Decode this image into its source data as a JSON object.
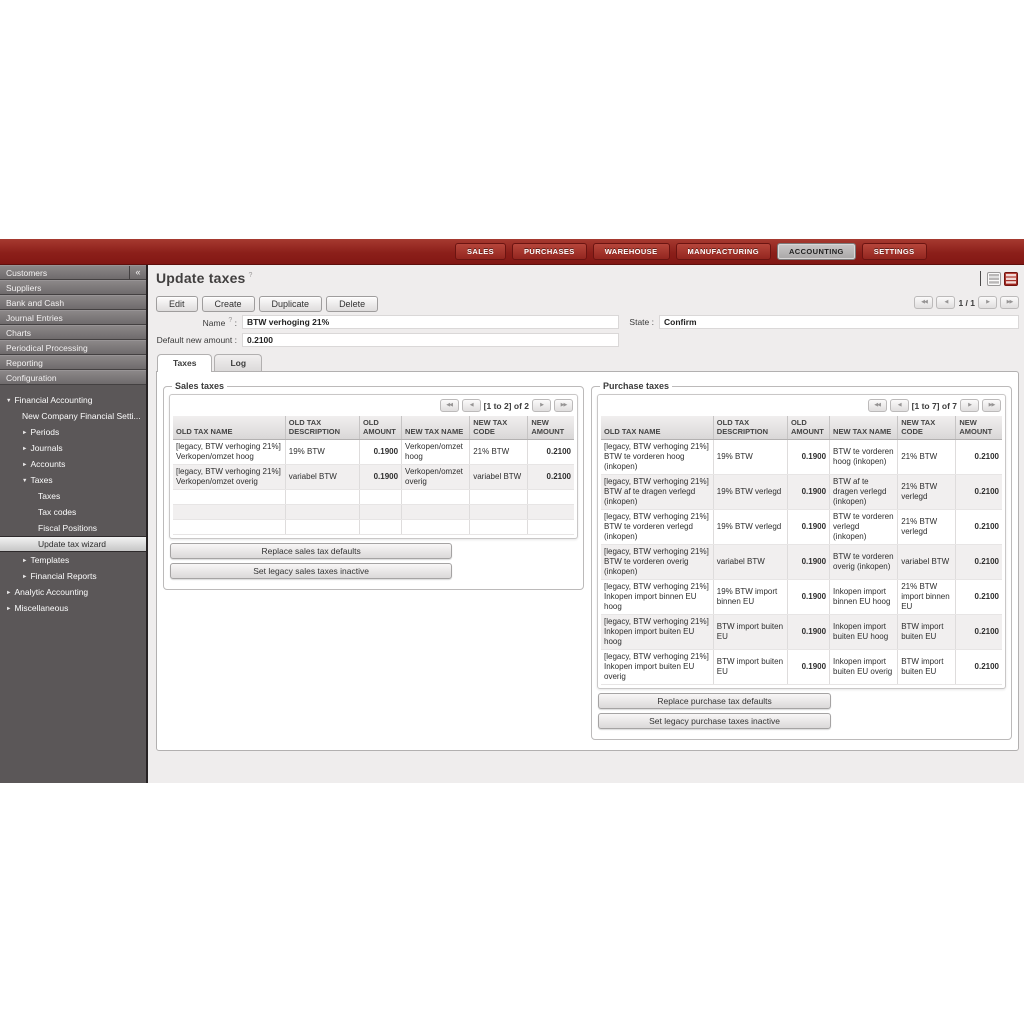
{
  "topnav": {
    "items": [
      {
        "label": "SALES",
        "active": false
      },
      {
        "label": "PURCHASES",
        "active": false
      },
      {
        "label": "WAREHOUSE",
        "active": false
      },
      {
        "label": "MANUFACTURING",
        "active": false
      },
      {
        "label": "ACCOUNTING",
        "active": true
      },
      {
        "label": "SETTINGS",
        "active": false
      }
    ]
  },
  "sidebar": {
    "collapse_label": "«",
    "sections": [
      "Customers",
      "Suppliers",
      "Bank and Cash",
      "Journal Entries",
      "Charts",
      "Periodical Processing",
      "Reporting",
      "Configuration"
    ],
    "tree": [
      {
        "label": "Financial Accounting",
        "arrow": "▼",
        "indent": 1,
        "selected": false
      },
      {
        "label": "New Company Financial Setti...",
        "arrow": "",
        "indent": 2,
        "selected": false
      },
      {
        "label": "Periods",
        "arrow": "►",
        "indent": 2,
        "selected": false
      },
      {
        "label": "Journals",
        "arrow": "►",
        "indent": 2,
        "selected": false
      },
      {
        "label": "Accounts",
        "arrow": "►",
        "indent": 2,
        "selected": false
      },
      {
        "label": "Taxes",
        "arrow": "▼",
        "indent": 2,
        "selected": false
      },
      {
        "label": "Taxes",
        "arrow": "",
        "indent": 3,
        "selected": false
      },
      {
        "label": "Tax codes",
        "arrow": "",
        "indent": 3,
        "selected": false
      },
      {
        "label": "Fiscal Positions",
        "arrow": "",
        "indent": 3,
        "selected": false
      },
      {
        "label": "Update tax wizard",
        "arrow": "",
        "indent": 3,
        "selected": true
      },
      {
        "label": "Templates",
        "arrow": "►",
        "indent": 2,
        "selected": false
      },
      {
        "label": "Financial Reports",
        "arrow": "►",
        "indent": 2,
        "selected": false
      },
      {
        "label": "Analytic Accounting",
        "arrow": "►",
        "indent": 1,
        "selected": false
      },
      {
        "label": "Miscellaneous",
        "arrow": "►",
        "indent": 1,
        "selected": false
      }
    ]
  },
  "header": {
    "title": "Update taxes",
    "help_icon": "?"
  },
  "toolbar": {
    "buttons": [
      "Edit",
      "Create",
      "Duplicate",
      "Delete"
    ],
    "pager_text": "1 / 1",
    "prev_all": "◀◀",
    "prev": "◀",
    "next": "▶",
    "next_all": "▶▶"
  },
  "form": {
    "name_label": "Name",
    "name_help": "?",
    "name_sep": ":",
    "name_value": "BTW verhoging 21%",
    "state_label": "State :",
    "state_value": "Confirm",
    "amount_label": "Default new amount :",
    "amount_value": "0.2100"
  },
  "tabs": [
    {
      "label": "Taxes",
      "active": true
    },
    {
      "label": "Log",
      "active": false
    }
  ],
  "panels": {
    "sales": {
      "legend": "Sales taxes",
      "pager_text": "[1 to 2] of 2",
      "headers": [
        "OLD TAX NAME",
        "OLD TAX DESCRIPTION",
        "OLD AMOUNT",
        "NEW TAX NAME",
        "NEW TAX CODE",
        "NEW AMOUNT"
      ],
      "rows": [
        [
          "[legacy, BTW verhoging 21%] Verkopen/omzet hoog",
          "19% BTW",
          "0.1900",
          "Verkopen/omzet hoog",
          "21% BTW",
          "0.2100"
        ],
        [
          "[legacy, BTW verhoging 21%] Verkopen/omzet overig",
          "variabel BTW",
          "0.1900",
          "Verkopen/omzet overig",
          "variabel BTW",
          "0.2100"
        ]
      ],
      "empty_rows": 3,
      "buttons": [
        "Replace sales tax defaults",
        "Set legacy sales taxes inactive"
      ]
    },
    "purchase": {
      "legend": "Purchase taxes",
      "pager_text": "[1 to 7] of 7",
      "headers": [
        "OLD TAX NAME",
        "OLD TAX DESCRIPTION",
        "OLD AMOUNT",
        "NEW TAX NAME",
        "NEW TAX CODE",
        "NEW AMOUNT"
      ],
      "rows": [
        [
          "[legacy, BTW verhoging 21%] BTW te vorderen hoog (inkopen)",
          "19% BTW",
          "0.1900",
          "BTW te vorderen hoog (inkopen)",
          "21% BTW",
          "0.2100"
        ],
        [
          "[legacy, BTW verhoging 21%] BTW af te dragen verlegd (inkopen)",
          "19% BTW verlegd",
          "0.1900",
          "BTW af te dragen verlegd (inkopen)",
          "21% BTW verlegd",
          "0.2100"
        ],
        [
          "[legacy, BTW verhoging 21%] BTW te vorderen verlegd (inkopen)",
          "19% BTW verlegd",
          "0.1900",
          "BTW te vorderen verlegd (inkopen)",
          "21% BTW verlegd",
          "0.2100"
        ],
        [
          "[legacy, BTW verhoging 21%] BTW te vorderen overig (inkopen)",
          "variabel BTW",
          "0.1900",
          "BTW te vorderen overig (inkopen)",
          "variabel BTW",
          "0.2100"
        ],
        [
          "[legacy, BTW verhoging 21%] Inkopen import binnen EU hoog",
          "19% BTW import binnen EU",
          "0.1900",
          "Inkopen import binnen EU hoog",
          "21% BTW import binnen EU",
          "0.2100"
        ],
        [
          "[legacy, BTW verhoging 21%] Inkopen import buiten EU hoog",
          "BTW import buiten EU",
          "0.1900",
          "Inkopen import buiten EU hoog",
          "BTW import buiten EU",
          "0.2100"
        ],
        [
          "[legacy, BTW verhoging 21%] Inkopen import buiten EU overig",
          "BTW import buiten EU",
          "0.1900",
          "Inkopen import buiten EU overig",
          "BTW import buiten EU",
          "0.2100"
        ]
      ],
      "empty_rows": 0,
      "buttons": [
        "Replace purchase tax defaults",
        "Set legacy purchase taxes inactive"
      ]
    }
  },
  "colors": {
    "topbar_red": "#8c1f1a",
    "active_form_icon_red": "#9c231c",
    "sidebar_bg": "#5b5758",
    "content_bg": "#efeded"
  }
}
